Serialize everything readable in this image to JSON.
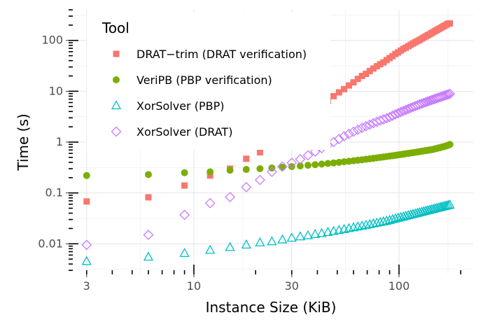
{
  "chart_data": {
    "type": "scatter",
    "xlabel": "Instance Size (KiB)",
    "ylabel": "Time (s)",
    "x_scale": "log",
    "y_scale": "log",
    "xlim": [
      2.45,
      230
    ],
    "ylim": [
      0.0025,
      400
    ],
    "x_ticks": [
      3,
      10,
      30,
      100
    ],
    "x_tick_labels": [
      "3",
      "10",
      "30",
      "100"
    ],
    "y_ticks": [
      0.01,
      0.1,
      1,
      10,
      100
    ],
    "y_tick_labels": [
      "0.01",
      "0.1",
      "1",
      "10",
      "100"
    ],
    "grid": true,
    "legend": {
      "title": "Tool",
      "placement": "top-left"
    },
    "series": [
      {
        "name": "DRAT−trim (DRAT verification)",
        "marker": "square",
        "color": "#F8766D",
        "points": [
          [
            3,
            0.068
          ],
          [
            6,
            0.082
          ],
          [
            9,
            0.14
          ],
          [
            12,
            0.22
          ],
          [
            15,
            0.3
          ],
          [
            18,
            0.47
          ],
          [
            21,
            0.63
          ],
          [
            24,
            0.86
          ],
          [
            27,
            1.1
          ],
          [
            30,
            1.8
          ],
          [
            33,
            2.4
          ],
          [
            36,
            3.2
          ],
          [
            39,
            4.2
          ],
          [
            42,
            5.3
          ],
          [
            45,
            6.5
          ],
          [
            48,
            8.0
          ],
          [
            51,
            9.5
          ],
          [
            54,
            11
          ],
          [
            57,
            13
          ],
          [
            60,
            15
          ],
          [
            63,
            17.5
          ],
          [
            66,
            20
          ],
          [
            69,
            22
          ],
          [
            72,
            25
          ],
          [
            75,
            28
          ],
          [
            78,
            31
          ],
          [
            81,
            34
          ],
          [
            84,
            37
          ],
          [
            87,
            41
          ],
          [
            90,
            45
          ],
          [
            93,
            49
          ],
          [
            96,
            54
          ],
          [
            99,
            58
          ],
          [
            102,
            63
          ],
          [
            105,
            68
          ],
          [
            108,
            72
          ],
          [
            111,
            77
          ],
          [
            114,
            82
          ],
          [
            117,
            87
          ],
          [
            120,
            92
          ],
          [
            123,
            97
          ],
          [
            126,
            102
          ],
          [
            129,
            108
          ],
          [
            132,
            114
          ],
          [
            135,
            120
          ],
          [
            138,
            126
          ],
          [
            141,
            132
          ],
          [
            144,
            139
          ],
          [
            147,
            146
          ],
          [
            150,
            153
          ],
          [
            153,
            160
          ],
          [
            156,
            167
          ],
          [
            159,
            174
          ],
          [
            162,
            182
          ],
          [
            165,
            190
          ],
          [
            168,
            198
          ],
          [
            171,
            206
          ],
          [
            174,
            214
          ],
          [
            177,
            216
          ]
        ]
      },
      {
        "name": "VeriPB (PBP verification)",
        "marker": "circle",
        "color": "#7CAE00",
        "points": [
          [
            3,
            0.22
          ],
          [
            6,
            0.23
          ],
          [
            9,
            0.25
          ],
          [
            12,
            0.26
          ],
          [
            15,
            0.28
          ],
          [
            18,
            0.29
          ],
          [
            21,
            0.3
          ],
          [
            24,
            0.31
          ],
          [
            27,
            0.32
          ],
          [
            30,
            0.33
          ],
          [
            33,
            0.34
          ],
          [
            36,
            0.35
          ],
          [
            39,
            0.36
          ],
          [
            42,
            0.37
          ],
          [
            45,
            0.38
          ],
          [
            48,
            0.39
          ],
          [
            51,
            0.4
          ],
          [
            54,
            0.41
          ],
          [
            57,
            0.42
          ],
          [
            60,
            0.43
          ],
          [
            63,
            0.44
          ],
          [
            66,
            0.45
          ],
          [
            69,
            0.46
          ],
          [
            72,
            0.47
          ],
          [
            75,
            0.48
          ],
          [
            78,
            0.49
          ],
          [
            81,
            0.5
          ],
          [
            84,
            0.51
          ],
          [
            87,
            0.52
          ],
          [
            90,
            0.53
          ],
          [
            93,
            0.54
          ],
          [
            96,
            0.55
          ],
          [
            99,
            0.56
          ],
          [
            102,
            0.57
          ],
          [
            105,
            0.58
          ],
          [
            108,
            0.59
          ],
          [
            111,
            0.6
          ],
          [
            114,
            0.61
          ],
          [
            117,
            0.62
          ],
          [
            120,
            0.63
          ],
          [
            123,
            0.64
          ],
          [
            126,
            0.65
          ],
          [
            129,
            0.66
          ],
          [
            132,
            0.67
          ],
          [
            135,
            0.68
          ],
          [
            138,
            0.69
          ],
          [
            141,
            0.7
          ],
          [
            144,
            0.71
          ],
          [
            147,
            0.72
          ],
          [
            150,
            0.74
          ],
          [
            153,
            0.75
          ],
          [
            156,
            0.77
          ],
          [
            159,
            0.78
          ],
          [
            162,
            0.8
          ],
          [
            165,
            0.81
          ],
          [
            168,
            0.83
          ],
          [
            171,
            0.85
          ],
          [
            174,
            0.87
          ],
          [
            177,
            0.9
          ]
        ]
      },
      {
        "name": "XorSolver (PBP)",
        "marker": "triangle",
        "color": "#00BFC4",
        "points": [
          [
            3,
            0.0045
          ],
          [
            6,
            0.0055
          ],
          [
            9,
            0.0065
          ],
          [
            12,
            0.0075
          ],
          [
            15,
            0.0085
          ],
          [
            18,
            0.0095
          ],
          [
            21,
            0.0105
          ],
          [
            24,
            0.011
          ],
          [
            27,
            0.012
          ],
          [
            30,
            0.013
          ],
          [
            33,
            0.0138
          ],
          [
            36,
            0.0145
          ],
          [
            39,
            0.0153
          ],
          [
            42,
            0.016
          ],
          [
            45,
            0.0168
          ],
          [
            48,
            0.0176
          ],
          [
            51,
            0.0184
          ],
          [
            54,
            0.0192
          ],
          [
            57,
            0.02
          ],
          [
            60,
            0.0208
          ],
          [
            63,
            0.0216
          ],
          [
            66,
            0.0224
          ],
          [
            69,
            0.0232
          ],
          [
            72,
            0.024
          ],
          [
            75,
            0.0248
          ],
          [
            78,
            0.0256
          ],
          [
            81,
            0.0264
          ],
          [
            84,
            0.0272
          ],
          [
            87,
            0.028
          ],
          [
            90,
            0.029
          ],
          [
            93,
            0.03
          ],
          [
            96,
            0.031
          ],
          [
            99,
            0.032
          ],
          [
            102,
            0.033
          ],
          [
            105,
            0.034
          ],
          [
            108,
            0.035
          ],
          [
            111,
            0.036
          ],
          [
            114,
            0.037
          ],
          [
            117,
            0.038
          ],
          [
            120,
            0.039
          ],
          [
            123,
            0.04
          ],
          [
            126,
            0.041
          ],
          [
            129,
            0.042
          ],
          [
            132,
            0.043
          ],
          [
            135,
            0.044
          ],
          [
            138,
            0.045
          ],
          [
            141,
            0.046
          ],
          [
            144,
            0.047
          ],
          [
            147,
            0.048
          ],
          [
            150,
            0.049
          ],
          [
            153,
            0.05
          ],
          [
            156,
            0.051
          ],
          [
            159,
            0.052
          ],
          [
            162,
            0.053
          ],
          [
            165,
            0.054
          ],
          [
            168,
            0.055
          ],
          [
            171,
            0.056
          ],
          [
            174,
            0.057
          ],
          [
            177,
            0.058
          ]
        ]
      },
      {
        "name": "XorSolver (DRAT)",
        "marker": "diamond",
        "color": "#C77CFF",
        "points": [
          [
            3,
            0.0095
          ],
          [
            6,
            0.015
          ],
          [
            9,
            0.037
          ],
          [
            12,
            0.063
          ],
          [
            15,
            0.083
          ],
          [
            18,
            0.13
          ],
          [
            21,
            0.18
          ],
          [
            24,
            0.26
          ],
          [
            27,
            0.33
          ],
          [
            30,
            0.39
          ],
          [
            33,
            0.46
          ],
          [
            36,
            0.55
          ],
          [
            39,
            0.65
          ],
          [
            42,
            0.76
          ],
          [
            45,
            0.88
          ],
          [
            48,
            1.0
          ],
          [
            51,
            1.15
          ],
          [
            54,
            1.3
          ],
          [
            57,
            1.45
          ],
          [
            60,
            1.6
          ],
          [
            63,
            1.75
          ],
          [
            66,
            1.9
          ],
          [
            69,
            2.05
          ],
          [
            72,
            2.2
          ],
          [
            75,
            2.35
          ],
          [
            78,
            2.5
          ],
          [
            81,
            2.65
          ],
          [
            84,
            2.8
          ],
          [
            87,
            2.95
          ],
          [
            90,
            3.1
          ],
          [
            93,
            3.3
          ],
          [
            96,
            3.5
          ],
          [
            99,
            3.7
          ],
          [
            102,
            3.9
          ],
          [
            105,
            4.1
          ],
          [
            108,
            4.3
          ],
          [
            111,
            4.5
          ],
          [
            114,
            4.7
          ],
          [
            117,
            4.9
          ],
          [
            120,
            5.1
          ],
          [
            123,
            5.3
          ],
          [
            126,
            5.5
          ],
          [
            129,
            5.7
          ],
          [
            132,
            5.9
          ],
          [
            135,
            6.1
          ],
          [
            138,
            6.3
          ],
          [
            141,
            6.5
          ],
          [
            144,
            6.7
          ],
          [
            147,
            6.9
          ],
          [
            150,
            7.1
          ],
          [
            153,
            7.3
          ],
          [
            156,
            7.5
          ],
          [
            159,
            7.7
          ],
          [
            162,
            7.9
          ],
          [
            165,
            8.1
          ],
          [
            168,
            8.3
          ],
          [
            171,
            8.5
          ],
          [
            174,
            8.7
          ],
          [
            177,
            8.9
          ]
        ]
      }
    ]
  }
}
